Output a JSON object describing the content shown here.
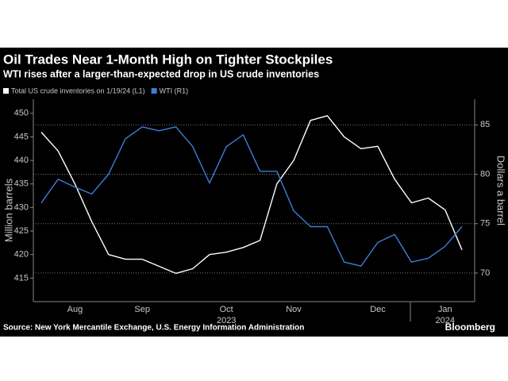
{
  "chart_data": {
    "type": "line",
    "title": "Oil Trades Near 1-Month High on Tighter Stockpiles",
    "subtitle": "WTI rises after a larger-than-expected drop in US crude inventories",
    "ylabel": "Million barrels",
    "y2label": "Dollars a barrel",
    "source": "Source: New York Mercantile Exchange, U.S. Energy Information Administration",
    "brand": "Bloomberg",
    "categories": [
      null,
      null,
      "Aug",
      null,
      null,
      null,
      "Sep",
      null,
      null,
      null,
      null,
      "Oct",
      null,
      null,
      null,
      "Nov",
      null,
      null,
      null,
      null,
      "Dec",
      null,
      null,
      null,
      "Jan",
      null
    ],
    "year_labels": [
      "2023",
      "2024"
    ],
    "series": [
      {
        "name": "Total US crude inventories on 1/19/24 (L1)",
        "color": "#ffffff",
        "axis": "y",
        "values": [
          446,
          442,
          435,
          427,
          420,
          419,
          419,
          417.5,
          416,
          417,
          420,
          420.5,
          421.5,
          423,
          435,
          440,
          448.5,
          449.5,
          445,
          442.5,
          443,
          436,
          431,
          432,
          429.5,
          421
        ]
      },
      {
        "name": "WTI (R1)",
        "color": "#3d7dd8",
        "axis": "y2",
        "values": [
          77.1,
          79.5,
          78.7,
          78,
          80,
          83.6,
          84.8,
          84.4,
          84.8,
          82.8,
          79.1,
          82.8,
          84,
          80.3,
          80.3,
          76.3,
          74.7,
          74.7,
          71.1,
          70.7,
          73.1,
          73.9,
          71.1,
          71.5,
          72.7,
          74.7
        ]
      }
    ],
    "ylim": [
      410,
      453
    ],
    "yticks": [
      415,
      420,
      425,
      430,
      435,
      440,
      445,
      450
    ],
    "y2lim": [
      67.1,
      87.6
    ],
    "y2ticks": [
      70,
      75,
      80,
      85
    ],
    "grid_axis": "y2"
  }
}
